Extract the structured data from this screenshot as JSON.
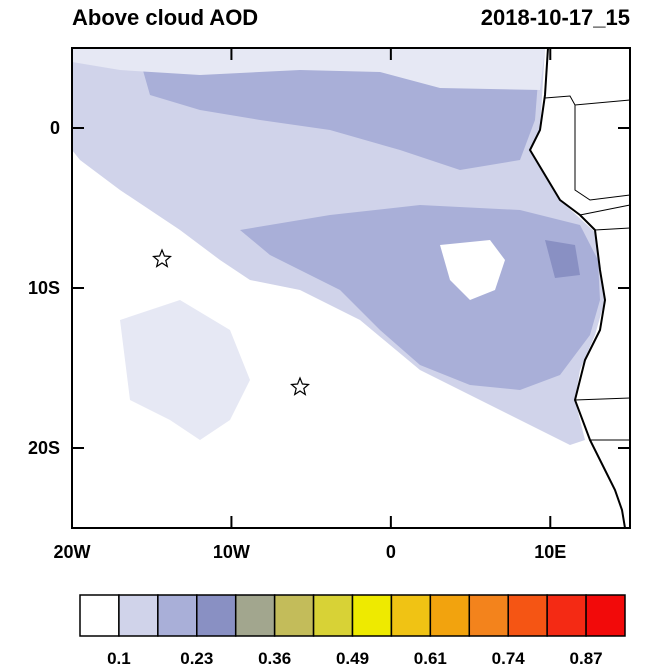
{
  "chart_data": {
    "type": "map",
    "title": "Above cloud AOD",
    "subtitle": "2018-10-17_15",
    "xlim": [
      -20,
      15
    ],
    "ylim": [
      -25,
      5
    ],
    "xticks": [
      {
        "value": -20,
        "label": "20W"
      },
      {
        "value": -10,
        "label": "10W"
      },
      0,
      {
        "value": 10,
        "label": "10E"
      }
    ],
    "yticks": [
      0,
      {
        "value": -10,
        "label": "10S"
      },
      {
        "value": -20,
        "label": "20S"
      }
    ],
    "colorbar": {
      "colors": [
        "#ffffff",
        "#d0d3ea",
        "#a9afd8",
        "#8990c3",
        "#a2a68e",
        "#c3bc5a",
        "#d8d236",
        "#eeea00",
        "#f0c314",
        "#f2a30e",
        "#f3831c",
        "#f55514",
        "#f42a14",
        "#f20a0a"
      ],
      "labels": [
        0.1,
        0.23,
        0.36,
        0.49,
        0.61,
        0.74,
        0.87
      ]
    }
  }
}
